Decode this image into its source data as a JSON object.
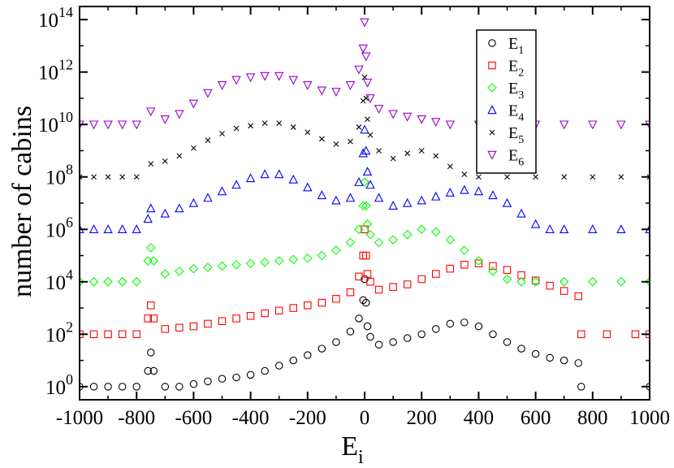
{
  "chart_data": {
    "type": "scatter",
    "title": "",
    "xlabel": "E",
    "xlabel_sub": "i",
    "ylabel": "number of cabins",
    "xlim": [
      -1000,
      1000
    ],
    "ylim_log10": [
      -0.5,
      14.5
    ],
    "y_scale": "log10",
    "x_ticks": [
      -1000,
      -800,
      -600,
      -400,
      -200,
      0,
      200,
      400,
      600,
      800,
      1000
    ],
    "x_tick_labels": [
      "-1000",
      "-800",
      "-600",
      "-400",
      "-200",
      "0",
      "200",
      "400",
      "600",
      "800",
      "1000"
    ],
    "y_tick_exponents": [
      0,
      2,
      4,
      6,
      8,
      10,
      12,
      14
    ],
    "legend_position": "top-right",
    "series": [
      {
        "name": "E",
        "sub": "1",
        "marker": "circle",
        "color": "#000000",
        "points": [
          [
            -1000,
            0
          ],
          [
            -950,
            0
          ],
          [
            -900,
            0
          ],
          [
            -850,
            0
          ],
          [
            -800,
            0
          ],
          [
            -760,
            0.6
          ],
          [
            -750,
            1.3
          ],
          [
            -740,
            0.6
          ],
          [
            -700,
            0
          ],
          [
            -650,
            0
          ],
          [
            -600,
            0.1
          ],
          [
            -550,
            0.2
          ],
          [
            -500,
            0.3
          ],
          [
            -450,
            0.35
          ],
          [
            -400,
            0.45
          ],
          [
            -350,
            0.6
          ],
          [
            -300,
            0.8
          ],
          [
            -250,
            1.0
          ],
          [
            -200,
            1.2
          ],
          [
            -150,
            1.45
          ],
          [
            -100,
            1.7
          ],
          [
            -50,
            2.1
          ],
          [
            -20,
            2.6
          ],
          [
            -5,
            3.3
          ],
          [
            0,
            4.1
          ],
          [
            5,
            3.2
          ],
          [
            10,
            2.3
          ],
          [
            20,
            1.9
          ],
          [
            50,
            1.6
          ],
          [
            100,
            1.7
          ],
          [
            150,
            1.85
          ],
          [
            200,
            2.0
          ],
          [
            250,
            2.2
          ],
          [
            300,
            2.4
          ],
          [
            350,
            2.45
          ],
          [
            400,
            2.3
          ],
          [
            450,
            2.0
          ],
          [
            500,
            1.7
          ],
          [
            550,
            1.45
          ],
          [
            600,
            1.25
          ],
          [
            650,
            1.1
          ],
          [
            700,
            1.0
          ],
          [
            750,
            0.9
          ],
          [
            760,
            0
          ],
          [
            1000,
            0
          ]
        ]
      },
      {
        "name": "E",
        "sub": "2",
        "marker": "square",
        "color": "#ff0000",
        "points": [
          [
            -1000,
            2
          ],
          [
            -950,
            2
          ],
          [
            -900,
            2
          ],
          [
            -850,
            2
          ],
          [
            -800,
            2
          ],
          [
            -760,
            2.6
          ],
          [
            -750,
            3.1
          ],
          [
            -740,
            2.6
          ],
          [
            -700,
            2.2
          ],
          [
            -650,
            2.25
          ],
          [
            -600,
            2.3
          ],
          [
            -550,
            2.4
          ],
          [
            -500,
            2.5
          ],
          [
            -450,
            2.6
          ],
          [
            -400,
            2.7
          ],
          [
            -350,
            2.8
          ],
          [
            -300,
            2.9
          ],
          [
            -250,
            3.0
          ],
          [
            -200,
            3.1
          ],
          [
            -150,
            3.2
          ],
          [
            -100,
            3.35
          ],
          [
            -50,
            3.6
          ],
          [
            -20,
            4.2
          ],
          [
            -5,
            5.0
          ],
          [
            0,
            6.0
          ],
          [
            5,
            5.0
          ],
          [
            10,
            4.3
          ],
          [
            20,
            4.0
          ],
          [
            50,
            3.7
          ],
          [
            100,
            3.8
          ],
          [
            150,
            3.9
          ],
          [
            200,
            4.1
          ],
          [
            250,
            4.3
          ],
          [
            300,
            4.5
          ],
          [
            350,
            4.65
          ],
          [
            400,
            4.7
          ],
          [
            450,
            4.6
          ],
          [
            500,
            4.45
          ],
          [
            550,
            4.25
          ],
          [
            600,
            4.05
          ],
          [
            650,
            3.85
          ],
          [
            700,
            3.65
          ],
          [
            750,
            3.45
          ],
          [
            760,
            2
          ],
          [
            850,
            2
          ],
          [
            950,
            2
          ],
          [
            1000,
            2
          ]
        ]
      },
      {
        "name": "E",
        "sub": "3",
        "marker": "diamond",
        "color": "#00ff00",
        "points": [
          [
            -1000,
            4
          ],
          [
            -950,
            4
          ],
          [
            -900,
            4
          ],
          [
            -850,
            4
          ],
          [
            -800,
            4
          ],
          [
            -760,
            4.8
          ],
          [
            -750,
            5.3
          ],
          [
            -740,
            4.8
          ],
          [
            -700,
            4.3
          ],
          [
            -650,
            4.4
          ],
          [
            -600,
            4.5
          ],
          [
            -550,
            4.55
          ],
          [
            -500,
            4.6
          ],
          [
            -450,
            4.65
          ],
          [
            -400,
            4.7
          ],
          [
            -350,
            4.75
          ],
          [
            -300,
            4.8
          ],
          [
            -250,
            4.85
          ],
          [
            -200,
            4.9
          ],
          [
            -150,
            5.0
          ],
          [
            -100,
            5.2
          ],
          [
            -50,
            5.5
          ],
          [
            -20,
            6.0
          ],
          [
            -5,
            6.9
          ],
          [
            0,
            7.8
          ],
          [
            5,
            6.9
          ],
          [
            10,
            6.2
          ],
          [
            20,
            5.8
          ],
          [
            50,
            5.5
          ],
          [
            100,
            5.6
          ],
          [
            150,
            5.8
          ],
          [
            200,
            6.0
          ],
          [
            250,
            5.9
          ],
          [
            300,
            5.6
          ],
          [
            350,
            5.2
          ],
          [
            400,
            4.8
          ],
          [
            450,
            4.4
          ],
          [
            500,
            4.1
          ],
          [
            550,
            4.0
          ],
          [
            600,
            4
          ],
          [
            700,
            4
          ],
          [
            800,
            4
          ],
          [
            900,
            4
          ],
          [
            1000,
            4
          ]
        ]
      },
      {
        "name": "E",
        "sub": "4",
        "marker": "triangle-up",
        "color": "#0000ff",
        "points": [
          [
            -1000,
            6
          ],
          [
            -950,
            6
          ],
          [
            -900,
            6
          ],
          [
            -850,
            6
          ],
          [
            -800,
            6
          ],
          [
            -760,
            6.4
          ],
          [
            -750,
            6.8
          ],
          [
            -700,
            6.6
          ],
          [
            -650,
            6.8
          ],
          [
            -600,
            7.0
          ],
          [
            -550,
            7.2
          ],
          [
            -500,
            7.45
          ],
          [
            -450,
            7.7
          ],
          [
            -400,
            7.95
          ],
          [
            -350,
            8.1
          ],
          [
            -300,
            8.1
          ],
          [
            -250,
            7.9
          ],
          [
            -200,
            7.6
          ],
          [
            -150,
            7.3
          ],
          [
            -100,
            7.1
          ],
          [
            -50,
            7.2
          ],
          [
            -20,
            7.8
          ],
          [
            -5,
            8.9
          ],
          [
            0,
            9.8
          ],
          [
            5,
            9.0
          ],
          [
            10,
            8.2
          ],
          [
            20,
            7.7
          ],
          [
            50,
            7.2
          ],
          [
            100,
            6.9
          ],
          [
            150,
            7.0
          ],
          [
            200,
            7.1
          ],
          [
            250,
            7.25
          ],
          [
            300,
            7.4
          ],
          [
            350,
            7.5
          ],
          [
            400,
            7.45
          ],
          [
            450,
            7.3
          ],
          [
            500,
            7.0
          ],
          [
            550,
            6.6
          ],
          [
            600,
            6.2
          ],
          [
            650,
            6.0
          ],
          [
            700,
            6
          ],
          [
            800,
            6
          ],
          [
            900,
            6
          ],
          [
            1000,
            6
          ]
        ]
      },
      {
        "name": "E",
        "sub": "5",
        "marker": "x",
        "color": "#000000",
        "points": [
          [
            -1000,
            8
          ],
          [
            -950,
            8
          ],
          [
            -900,
            8
          ],
          [
            -850,
            8
          ],
          [
            -800,
            8
          ],
          [
            -750,
            8.5
          ],
          [
            -700,
            8.6
          ],
          [
            -650,
            8.8
          ],
          [
            -600,
            9.1
          ],
          [
            -550,
            9.4
          ],
          [
            -500,
            9.65
          ],
          [
            -450,
            9.85
          ],
          [
            -400,
            9.95
          ],
          [
            -350,
            10.05
          ],
          [
            -300,
            10.05
          ],
          [
            -250,
            9.9
          ],
          [
            -200,
            9.7
          ],
          [
            -150,
            9.45
          ],
          [
            -100,
            9.25
          ],
          [
            -50,
            9.35
          ],
          [
            -20,
            9.9
          ],
          [
            -5,
            10.9
          ],
          [
            0,
            11.8
          ],
          [
            5,
            11.0
          ],
          [
            10,
            10.2
          ],
          [
            20,
            9.6
          ],
          [
            50,
            9.0
          ],
          [
            100,
            8.7
          ],
          [
            150,
            8.9
          ],
          [
            200,
            9.0
          ],
          [
            250,
            8.8
          ],
          [
            300,
            8.4
          ],
          [
            350,
            8.1
          ],
          [
            400,
            8
          ],
          [
            500,
            8
          ],
          [
            600,
            8
          ],
          [
            700,
            8
          ],
          [
            800,
            8
          ],
          [
            900,
            8
          ],
          [
            1000,
            8
          ]
        ]
      },
      {
        "name": "E",
        "sub": "6",
        "marker": "triangle-down",
        "color": "#9900cc",
        "points": [
          [
            -1000,
            10
          ],
          [
            -950,
            10
          ],
          [
            -900,
            10
          ],
          [
            -850,
            10
          ],
          [
            -800,
            10
          ],
          [
            -750,
            10.5
          ],
          [
            -700,
            10.2
          ],
          [
            -650,
            10.4
          ],
          [
            -600,
            10.8
          ],
          [
            -550,
            11.2
          ],
          [
            -500,
            11.5
          ],
          [
            -450,
            11.7
          ],
          [
            -400,
            11.8
          ],
          [
            -350,
            11.85
          ],
          [
            -300,
            11.85
          ],
          [
            -250,
            11.7
          ],
          [
            -200,
            11.5
          ],
          [
            -150,
            11.3
          ],
          [
            -100,
            11.25
          ],
          [
            -50,
            11.5
          ],
          [
            -20,
            12.1
          ],
          [
            -5,
            12.9
          ],
          [
            0,
            13.9
          ],
          [
            5,
            12.6
          ],
          [
            10,
            11.6
          ],
          [
            20,
            11.0
          ],
          [
            50,
            10.6
          ],
          [
            100,
            10.4
          ],
          [
            150,
            10.3
          ],
          [
            200,
            10.2
          ],
          [
            250,
            10.1
          ],
          [
            300,
            10
          ],
          [
            400,
            10
          ],
          [
            500,
            10
          ],
          [
            600,
            10
          ],
          [
            700,
            10
          ],
          [
            800,
            10
          ],
          [
            900,
            10
          ],
          [
            1000,
            10
          ]
        ]
      }
    ]
  }
}
